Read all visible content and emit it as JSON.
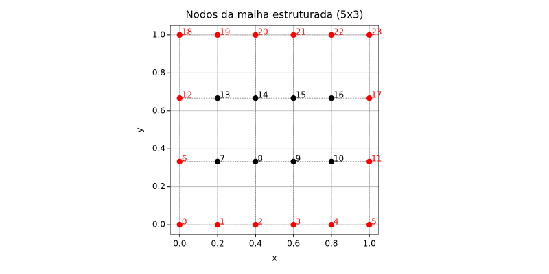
{
  "chart_data": {
    "type": "scatter",
    "title": "Nodos da malha estruturada (5x3)",
    "x_label": "x",
    "y_label": "y",
    "xlim": [
      -0.05,
      1.05
    ],
    "ylim": [
      -0.05,
      1.05
    ],
    "xticks": [
      {
        "value": 0,
        "label": "0.0"
      },
      0.2,
      0.4,
      0.6,
      0.8,
      {
        "value": 1,
        "label": "1.0"
      }
    ],
    "yticks": [
      {
        "value": 0,
        "label": "0.0"
      },
      0.2,
      0.4,
      0.6,
      0.8,
      {
        "value": 1,
        "label": "1.0"
      }
    ],
    "grid": true,
    "series": [
      {
        "color": "#ff0000",
        "x": [
          0,
          0.2,
          0.4,
          0.6,
          0.8,
          1,
          0,
          1,
          0,
          1,
          0,
          0.2,
          0.4,
          0.6,
          0.8,
          1
        ],
        "values": [
          0,
          0,
          0,
          0,
          0,
          0,
          0.333,
          0.333,
          0.667,
          0.667,
          1,
          1,
          1,
          1,
          1,
          1
        ],
        "labels": [
          0,
          1,
          2,
          3,
          4,
          5,
          6,
          11,
          12,
          17,
          18,
          19,
          20,
          21,
          22,
          23
        ]
      },
      {
        "color": "#000000",
        "x": [
          0.2,
          0.4,
          0.6,
          0.8,
          0.2,
          0.4,
          0.6,
          0.8
        ],
        "values": [
          0.333,
          0.333,
          0.333,
          0.333,
          0.667,
          0.667,
          0.667,
          0.667
        ],
        "labels": [
          7,
          8,
          9,
          10,
          13,
          14,
          15,
          16
        ]
      }
    ]
  }
}
